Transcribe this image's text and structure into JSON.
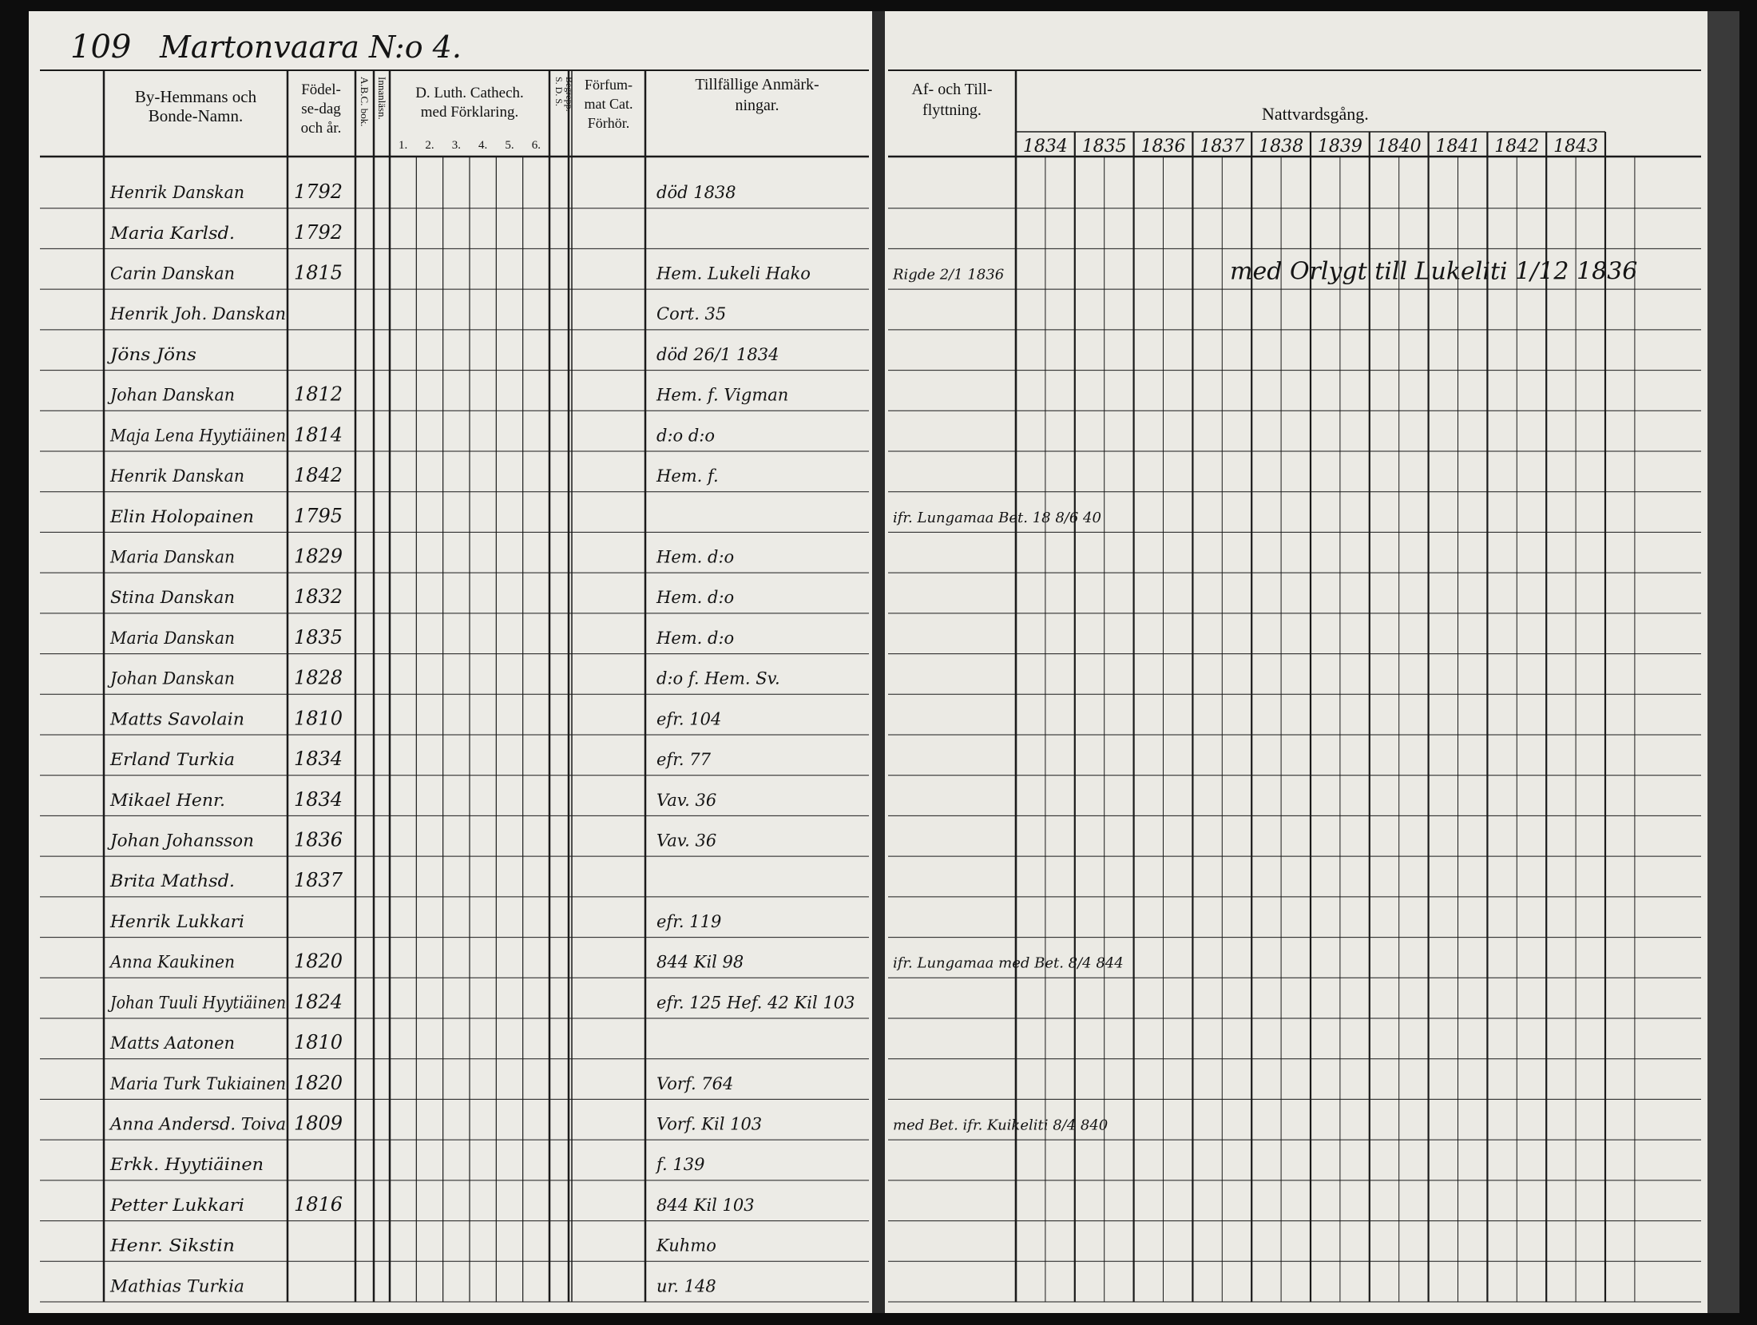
{
  "header": {
    "page_number": "109",
    "parish_title": "Martonvaara N:o 4."
  },
  "left_columns": {
    "name": [
      "By-Hemmans och",
      "Bonde-Namn."
    ],
    "born": [
      "Födel-",
      "se-dag",
      "och år."
    ],
    "abc": "A.B.C. bok.",
    "reading": "Innanläsn.",
    "catechism": [
      "D. Luth. Cathech.",
      "med Förklaring."
    ],
    "catechism_numbers": [
      "1.",
      "2.",
      "3.",
      "4.",
      "5.",
      "6."
    ],
    "sds": [
      "S. D. S.",
      "Begrepp."
    ],
    "missed": [
      "Förfum-",
      "mat Cat.",
      "Förhör."
    ],
    "remarks": [
      "Tillfällige Anmärk-",
      "ningar."
    ]
  },
  "right_columns": {
    "moving": [
      "Af- och Till-",
      "flyttning."
    ],
    "communion": "Nattvardsgång.",
    "years": [
      "1834",
      "1835",
      "1836",
      "1837",
      "1838",
      "1839",
      "1840",
      "1841",
      "1842",
      "1843"
    ]
  },
  "rows": [
    {
      "name": "Henrik Danskan",
      "born": "1792",
      "remark": "död 1838"
    },
    {
      "name": "Maria Karlsd.",
      "born": "1792"
    },
    {
      "name": "Carin Danskan",
      "born": "1815",
      "remark": "Hem. Lukeli Hako",
      "moving": "Rigde 2/1 1836"
    },
    {
      "name": "Henrik Joh. Danskan",
      "remark": "Cort. 35"
    },
    {
      "name": "Jöns Jöns",
      "remark": "död 26/1 1834"
    },
    {
      "name": "Johan Danskan",
      "born": "1812",
      "remark": "Hem. f. Vigman"
    },
    {
      "name": "Maja Lena Hyytiäinen",
      "born": "1814",
      "remark": "d:o d:o"
    },
    {
      "name": "Henrik Danskan",
      "born": "1842",
      "remark": "Hem. f."
    },
    {
      "name": "Elin Holopainen",
      "born": "1795",
      "moving": "ifr. Lungamaa Bet. 18 8/6 40"
    },
    {
      "name": "Maria Danskan",
      "born": "1829",
      "remark": "Hem. d:o"
    },
    {
      "name": "Stina Danskan",
      "born": "1832",
      "remark": "Hem. d:o"
    },
    {
      "name": "Maria Danskan",
      "born": "1835",
      "remark": "Hem. d:o"
    },
    {
      "name": "Johan Danskan",
      "born": "1828",
      "remark": "d:o f. Hem. Sv."
    },
    {
      "name": "Matts Savolain",
      "born": "1810",
      "remark": "efr. 104"
    },
    {
      "name": "Erland Turkia",
      "born": "1834",
      "remark": "efr. 77"
    },
    {
      "name": "Mikael Henr.",
      "born": "1834",
      "remark": "Vav. 36"
    },
    {
      "name": "Johan Johansson",
      "born": "1836",
      "remark": "Vav. 36"
    },
    {
      "name": "Brita Mathsd.",
      "born": "1837"
    },
    {
      "name": "Henrik Lukkari",
      "remark": "efr. 119"
    },
    {
      "name": "Anna Kaukinen",
      "born": "1820",
      "remark": "844 Kil 98",
      "moving": "ifr. Lungamaa med Bet. 8/4 844"
    },
    {
      "name": "Johan Tuuli Hyytiäinen",
      "born": "1824",
      "remark": "efr. 125 Hef. 42 Kil 103"
    },
    {
      "name": "Matts Aatonen",
      "born": "1810"
    },
    {
      "name": "Maria Turk Tukiainen",
      "born": "1820",
      "remark": "Vorf. 764"
    },
    {
      "name": "Anna Andersd. Toiva",
      "born": "1809",
      "remark": "Vorf. Kil 103",
      "moving": "med Bet. ifr. Kuikeliti 8/4 840"
    },
    {
      "name": "Erkk. Hyytiäinen",
      "remark": "f. 139"
    },
    {
      "name": "Petter Lukkari",
      "born": "1816",
      "remark": "844 Kil 103"
    },
    {
      "name": "Henr. Sikstin",
      "remark": "Kuhmo"
    },
    {
      "name": "Mathias Turkia",
      "remark": "ur. 148"
    }
  ],
  "annotations": [
    {
      "text": "med Orlygt till Lukeliti 1/12 1836"
    }
  ]
}
